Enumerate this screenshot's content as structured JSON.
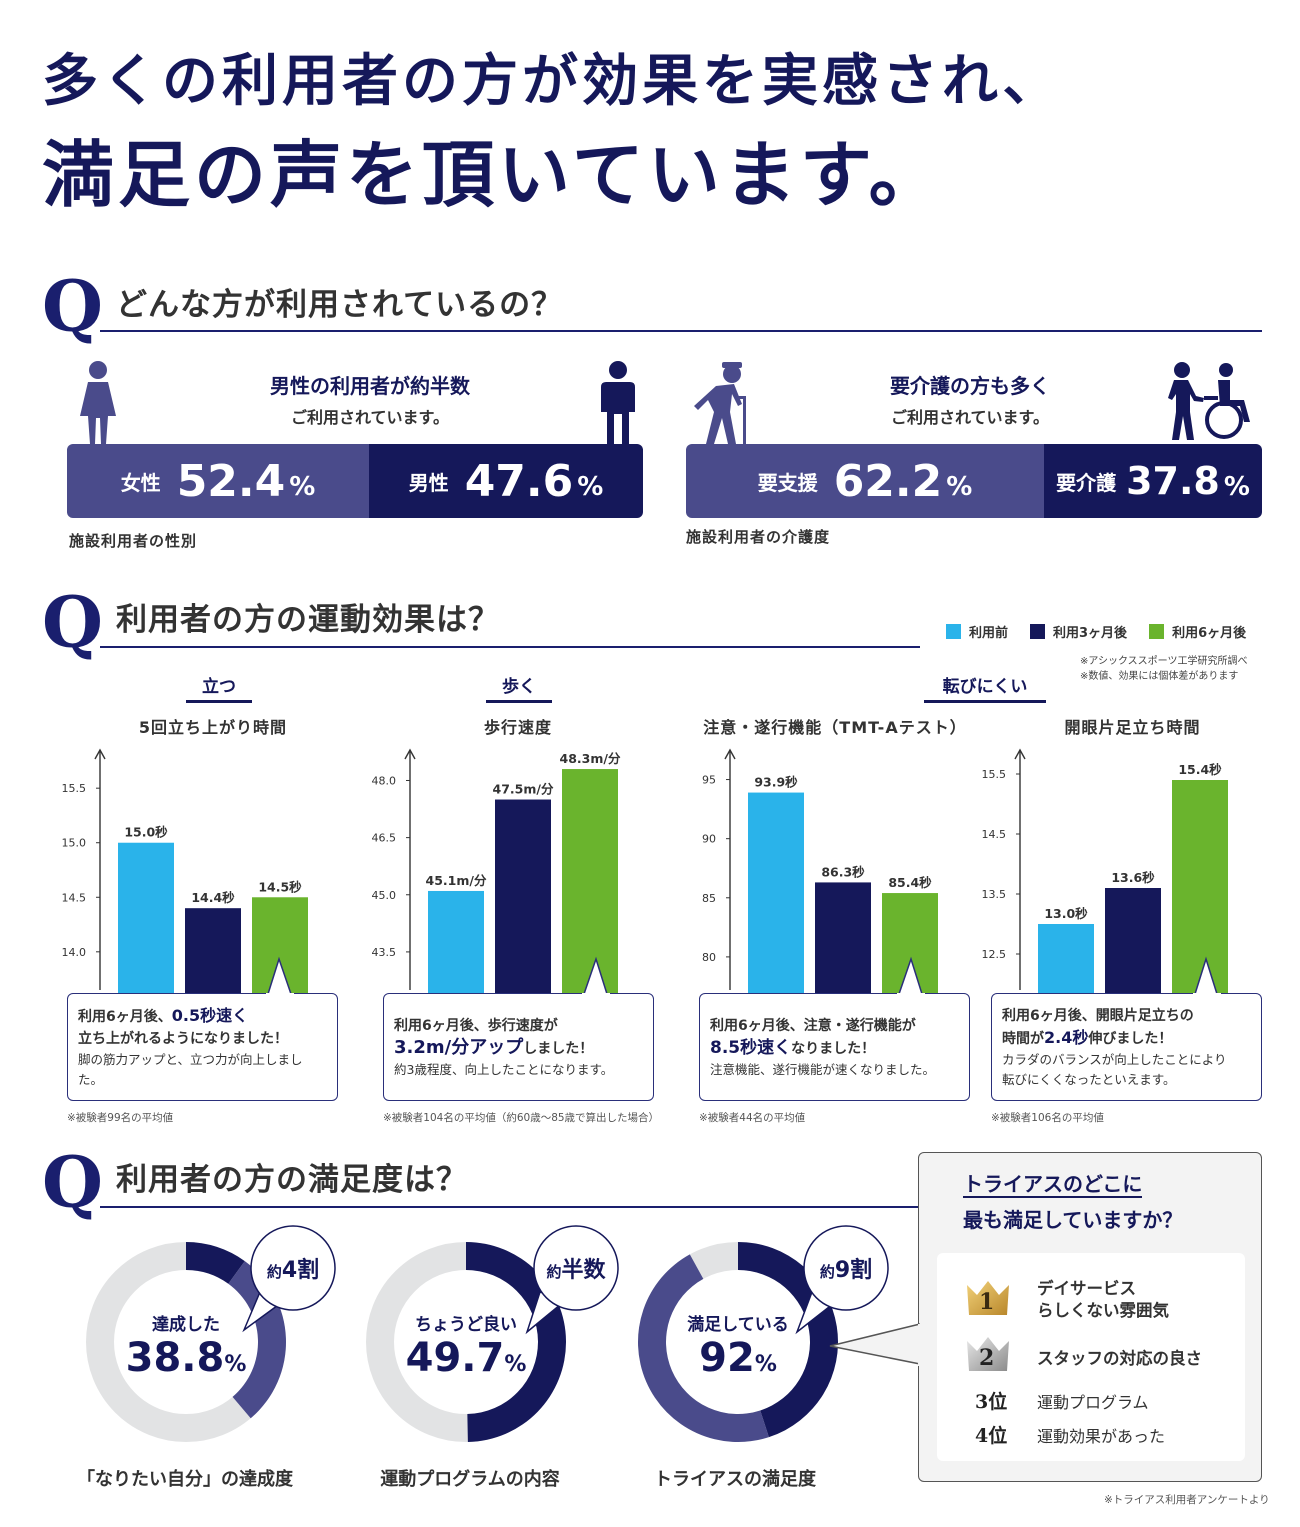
{
  "headline": {
    "line1": "多くの利用者の方が効果を実感され、",
    "line2": "満足の声を頂いています。"
  },
  "q1": {
    "mark": "Q",
    "title": "どんな方が利用されているの？",
    "gender": {
      "head": "男性の利用者が約半数",
      "sub": "ご利用されています。",
      "female_label": "女性",
      "female_value": "52.4",
      "female_unit": "%",
      "male_label": "男性",
      "male_value": "47.6",
      "male_unit": "%",
      "caption": "施設利用者の性別",
      "colors": {
        "light": "#4a4b8b",
        "dark": "#15185a"
      }
    },
    "care": {
      "head": "要介護の方も多く",
      "sub": "ご利用されています。",
      "support_label": "要支援",
      "support_value": "62.2",
      "support_unit": "%",
      "care_label": "要介護",
      "care_value": "37.8",
      "care_unit": "%",
      "caption": "施設利用者の介護度"
    }
  },
  "q2": {
    "mark": "Q",
    "title": "利用者の方の運動効果は？",
    "legend": [
      "利用前",
      "利用3ヶ月後",
      "利用6ヶ月後"
    ],
    "notes": [
      "※アシックススポーツ工学研究所調べ",
      "※数値、効果には個体差があります"
    ],
    "categories": {
      "stand": "立つ",
      "walk": "歩く",
      "fall": "転びにくい"
    },
    "callouts": [
      {
        "pre1": "利用6ヶ月後、",
        "hl1": "0.5秒速く",
        "line2": "立ち上がれるようになりました！",
        "line3": "脚の筋力アップと、立つ力が向上しました。"
      },
      {
        "pre1": "利用6ヶ月後、歩行速度が",
        "hl2": "3.2m/分アップ",
        "post2": "しました！",
        "line3": "約3歳程度、向上したことになります。"
      },
      {
        "pre1": "利用6ヶ月後、注意・遂行機能が",
        "hl2": "8.5秒速く",
        "post2": "なりました！",
        "line3": "注意機能、遂行機能が速くなりました。"
      },
      {
        "pre1": "利用6ヶ月後、開眼片足立ちの",
        "pre2": "時間が",
        "hl2": "2.4秒",
        "post2": "伸びました！",
        "line3": "カラダのバランスが向上したことにより",
        "line4": "転びにくくなったといえます。"
      }
    ],
    "footnotes": [
      "※被験者99名の平均値",
      "※被験者104名の平均値（約60歳〜85歳で算出した場合）",
      "※被験者44名の平均値",
      "※被験者106名の平均値"
    ]
  },
  "chart_data": [
    {
      "type": "bar",
      "title": "5回立ち上がり時間",
      "categories": [
        "利用前",
        "利用3ヶ月後",
        "利用6ヶ月後"
      ],
      "values": [
        15.0,
        14.4,
        14.5
      ],
      "labels": [
        "15.0秒",
        "14.4秒",
        "14.5秒"
      ],
      "yticks": [
        14.0,
        14.5,
        15.0,
        15.5
      ],
      "yticklabels": [
        "14.0",
        "14.5",
        "15.0",
        "15.5"
      ],
      "ylim": [
        13.65,
        15.85
      ],
      "colors": [
        "#2ab3ea",
        "#15185a",
        "#6ab42d"
      ]
    },
    {
      "type": "bar",
      "title": "歩行速度",
      "categories": [
        "利用前",
        "利用3ヶ月後",
        "利用6ヶ月後"
      ],
      "values": [
        45.1,
        47.5,
        48.3
      ],
      "labels": [
        "45.1m/分",
        "47.5m/分",
        "48.3m/分"
      ],
      "yticks": [
        43.5,
        45.0,
        46.5,
        48.0
      ],
      "yticklabels": [
        "43.5",
        "45.0",
        "46.5",
        "48.0"
      ],
      "ylim": [
        42.5,
        48.8
      ],
      "colors": [
        "#2ab3ea",
        "#15185a",
        "#6ab42d"
      ]
    },
    {
      "type": "bar",
      "title": "注意・遂行機能（TMT-Aテスト）",
      "categories": [
        "利用前",
        "利用3ヶ月後",
        "利用6ヶ月後"
      ],
      "values": [
        93.9,
        86.3,
        85.4
      ],
      "labels": [
        "93.9秒",
        "86.3秒",
        "85.4秒"
      ],
      "yticks": [
        80,
        85,
        90,
        95
      ],
      "yticklabels": [
        "80",
        "85",
        "90",
        "95"
      ],
      "ylim": [
        77.2,
        97.5
      ],
      "colors": [
        "#2ab3ea",
        "#15185a",
        "#6ab42d"
      ]
    },
    {
      "type": "bar",
      "title": "開眼片足立ち時間",
      "categories": [
        "利用前",
        "利用3ヶ月後",
        "利用6ヶ月後"
      ],
      "values": [
        13.0,
        13.6,
        15.4
      ],
      "labels": [
        "13.0秒",
        "13.6秒",
        "15.4秒"
      ],
      "yticks": [
        12.5,
        13.5,
        14.5,
        15.5
      ],
      "yticklabels": [
        "12.5",
        "13.5",
        "14.5",
        "15.5"
      ],
      "ylim": [
        11.9,
        15.9
      ],
      "colors": [
        "#2ab3ea",
        "#15185a",
        "#6ab42d"
      ]
    },
    {
      "type": "pie",
      "title": "「なりたい自分」の達成度",
      "value_percent": 38.8,
      "center_label": "達成した",
      "center_value": "38.8",
      "center_unit": "%",
      "bubble_pre": "約",
      "bubble_strong": "4割",
      "colors": {
        "highlight": "#4a4b8b",
        "accent": "#15185a",
        "rest": "#e2e3e4"
      }
    },
    {
      "type": "pie",
      "title": "運動プログラムの内容",
      "value_percent": 49.7,
      "center_label": "ちょうど良い",
      "center_value": "49.7",
      "center_unit": "%",
      "bubble_pre": "約",
      "bubble_strong": "半数",
      "colors": {
        "highlight": "#15185a",
        "rest": "#e2e3e4"
      }
    },
    {
      "type": "pie",
      "title": "トライアスの満足度",
      "value_percent": 92,
      "center_label": "満足している",
      "center_value": "92",
      "center_unit": "%",
      "bubble_pre": "約",
      "bubble_strong": "9割",
      "colors": {
        "highlight": "#15185a",
        "secondary": "#4a4b8b",
        "rest": "#e2e3e4"
      }
    }
  ],
  "q3": {
    "mark": "Q",
    "title": "利用者の方の満足度は？",
    "ranking": {
      "question1": "トライアスのどこに",
      "question2": "最も満足していますか？",
      "items": [
        {
          "rank": "1",
          "line1": "デイサービス",
          "line2": "らしくない雰囲気"
        },
        {
          "rank": "2",
          "line1": "スタッフの対応の良さ"
        },
        {
          "rank": "3位",
          "line1": "運動プログラム"
        },
        {
          "rank": "4位",
          "line1": "運動効果があった"
        }
      ]
    },
    "footnote": "※トライアス利用者アンケートより"
  }
}
